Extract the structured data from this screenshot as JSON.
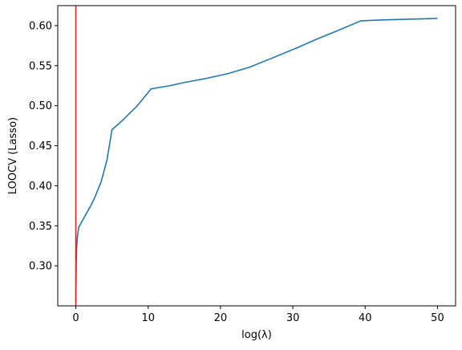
{
  "chart_data": {
    "type": "line",
    "xlabel": "log(λ)",
    "ylabel": "LOOCV (Lasso)",
    "xlim": [
      -2.5,
      52.5
    ],
    "ylim": [
      0.25,
      0.625
    ],
    "xticks": [
      0,
      10,
      20,
      30,
      40,
      50
    ],
    "yticks": [
      0.3,
      0.35,
      0.4,
      0.45,
      0.5,
      0.55,
      0.6
    ],
    "xtick_labels": [
      "0",
      "10",
      "20",
      "30",
      "40",
      "50"
    ],
    "ytick_labels": [
      "0.30",
      "0.35",
      "0.40",
      "0.45",
      "0.50",
      "0.55",
      "0.60"
    ],
    "grid": false,
    "series": [
      {
        "color": "#1f77b4",
        "x": [
          0.0,
          0.05,
          0.1,
          0.2,
          0.4,
          1.0,
          2.0,
          2.6,
          3.5,
          4.3,
          5.0,
          6.5,
          8.5,
          10.4,
          11.0,
          13.0,
          15.0,
          18.0,
          21.0,
          24.0,
          27.0,
          30.5,
          33.0,
          36.0,
          39.4,
          42.0,
          46.0,
          50.0
        ],
        "y": [
          0.255,
          0.3,
          0.32,
          0.335,
          0.348,
          0.358,
          0.374,
          0.385,
          0.405,
          0.432,
          0.47,
          0.482,
          0.5,
          0.521,
          0.522,
          0.525,
          0.529,
          0.534,
          0.54,
          0.548,
          0.559,
          0.572,
          0.582,
          0.593,
          0.606,
          0.607,
          0.608,
          0.609
        ]
      }
    ],
    "vlines": [
      {
        "x": 0,
        "color": "#d62728"
      }
    ]
  }
}
